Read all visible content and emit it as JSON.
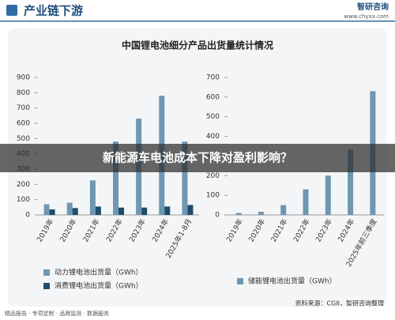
{
  "header": {
    "title": "产业链下游",
    "logo": "智研咨询",
    "url": "www.chyxx.com"
  },
  "panel_title": "中国锂电池细分产品出货量统计情况",
  "banner": "新能源车电池成本下降对盈利影响？",
  "source": "资料来源：CGII，智研咨询整理",
  "footer": "精品报告 · 专项定制 · 品牌监测 · 数据服务",
  "chart_data": [
    {
      "type": "bar",
      "categories": [
        "2019年",
        "2020年",
        "2021年",
        "2022年",
        "2023年",
        "2024年",
        "2025年1-8月"
      ],
      "series": [
        {
          "name": "动力锂电池出货量（GWh）",
          "color": "#6e97b1",
          "values": [
            70,
            80,
            226,
            480,
            630,
            780,
            480
          ]
        },
        {
          "name": "消费锂电池出货量（GWh）",
          "color": "#1d4d69",
          "values": [
            36,
            45,
            55,
            48,
            48,
            55,
            65
          ]
        }
      ],
      "ylim": [
        0,
        900
      ],
      "yticks": [
        0,
        100,
        200,
        300,
        400,
        500,
        600,
        700,
        800,
        900
      ],
      "grid": false
    },
    {
      "type": "bar",
      "categories": [
        "2019年",
        "2020年",
        "2021年",
        "2022年",
        "2023年",
        "2024年",
        "2025年前三季度"
      ],
      "series": [
        {
          "name": "储能锂电池出货量（GWh）",
          "color": "#6e97b1",
          "values": [
            10,
            16,
            50,
            130,
            200,
            333,
            630
          ]
        }
      ],
      "ylim": [
        0,
        700
      ],
      "yticks": [
        0,
        100,
        200,
        300,
        400,
        500,
        600,
        700
      ],
      "grid": false
    }
  ]
}
